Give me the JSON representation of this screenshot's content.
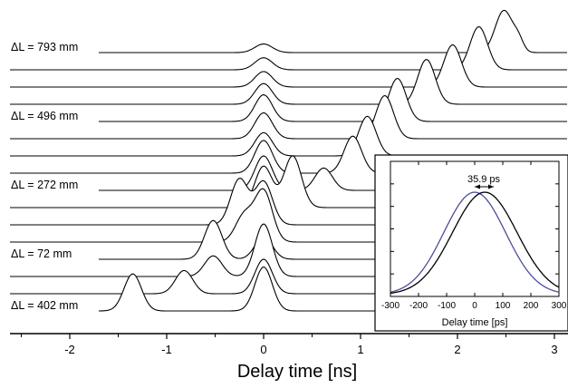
{
  "chart_data": [
    {
      "type": "line",
      "xlabel": "Delay time [ns]",
      "xlim": [
        -2.6,
        3.1
      ],
      "xticks": [
        -2,
        -1,
        0,
        1,
        2,
        3
      ],
      "xtick_labels": [
        "-2",
        "-1",
        "0",
        "1",
        "2",
        "3"
      ],
      "row_labels": [
        {
          "row": 0,
          "text": "ΔL = 793 mm"
        },
        {
          "row": 4,
          "text": "ΔL = 496 mm"
        },
        {
          "row": 8,
          "text": "ΔL = 272 mm"
        },
        {
          "row": 12,
          "text": "ΔL = 72 mm"
        },
        {
          "row": 15,
          "text": "ΔL = 402 mm"
        }
      ],
      "traces": [
        {
          "peaks": [
            {
              "x": 0.0,
              "a": 0.5,
              "w": 0.09
            },
            {
              "x": 2.48,
              "a": 2.45,
              "w": 0.09
            },
            {
              "x": 2.63,
              "a": 0.6,
              "w": 0.05
            }
          ]
        },
        {
          "peaks": [
            {
              "x": 0.0,
              "a": 0.7,
              "w": 0.09
            },
            {
              "x": 2.22,
              "a": 2.5,
              "w": 0.09
            }
          ]
        },
        {
          "peaks": [
            {
              "x": 0.0,
              "a": 0.9,
              "w": 0.09
            },
            {
              "x": 1.95,
              "a": 2.45,
              "w": 0.09
            }
          ]
        },
        {
          "peaks": [
            {
              "x": 0.0,
              "a": 1.2,
              "w": 0.09
            },
            {
              "x": 1.68,
              "a": 2.6,
              "w": 0.09
            }
          ]
        },
        {
          "peaks": [
            {
              "x": 0.0,
              "a": 1.55,
              "w": 0.09
            },
            {
              "x": 1.38,
              "a": 2.5,
              "w": 0.09
            }
          ]
        },
        {
          "peaks": [
            {
              "x": 0.0,
              "a": 1.5,
              "w": 0.09
            },
            {
              "x": 1.25,
              "a": 2.5,
              "w": 0.09
            }
          ]
        },
        {
          "peaks": [
            {
              "x": 0.0,
              "a": 1.35,
              "w": 0.09
            },
            {
              "x": 1.07,
              "a": 2.3,
              "w": 0.09
            }
          ]
        },
        {
          "peaks": [
            {
              "x": 0.0,
              "a": 1.9,
              "w": 0.09
            },
            {
              "x": 0.92,
              "a": 2.15,
              "w": 0.09
            }
          ]
        },
        {
          "peaks": [
            {
              "x": 0.0,
              "a": 2.0,
              "w": 0.09
            },
            {
              "x": 0.62,
              "a": 1.3,
              "w": 0.09
            }
          ]
        },
        {
          "peaks": [
            {
              "x": 0.0,
              "a": 2.4,
              "w": 0.09
            },
            {
              "x": 0.3,
              "a": 3.0,
              "w": 0.09
            }
          ]
        },
        {
          "peaks": [
            {
              "x": 0.0,
              "a": 2.5,
              "w": 0.09
            },
            {
              "x": -0.25,
              "a": 2.65,
              "w": 0.09
            }
          ]
        },
        {
          "peaks": [
            {
              "x": 0.0,
              "a": 2.95,
              "w": 0.09
            },
            {
              "x": -0.2,
              "a": 1.55,
              "w": 0.09
            }
          ]
        },
        {
          "peaks": [
            {
              "x": 0.0,
              "a": 1.3,
              "w": 0.09
            },
            {
              "x": -0.52,
              "a": 2.25,
              "w": 0.09
            }
          ]
        },
        {
          "peaks": [
            {
              "x": 0.0,
              "a": 3.05,
              "w": 0.09
            },
            {
              "x": -0.52,
              "a": 1.2,
              "w": 0.09
            }
          ]
        },
        {
          "peaks": [
            {
              "x": 0.0,
              "a": 2.0,
              "w": 0.09
            },
            {
              "x": -0.82,
              "a": 1.35,
              "w": 0.09
            }
          ]
        },
        {
          "peaks": [
            {
              "x": 0.0,
              "a": 2.55,
              "w": 0.09
            },
            {
              "x": -1.35,
              "a": 2.15,
              "w": 0.09
            }
          ]
        }
      ]
    },
    {
      "type": "line",
      "xlabel": "Delay time [ps]",
      "xlim": [
        -300,
        300
      ],
      "xticks": [
        -300,
        -200,
        -100,
        0,
        100,
        200,
        300
      ],
      "xtick_labels": [
        "-300",
        "-200",
        "-100",
        "0",
        "100",
        "200",
        "300"
      ],
      "annotation": "35.9 ps",
      "series": [
        {
          "center": 0,
          "sigma": 110,
          "color": "#4d4d9a"
        },
        {
          "center": 35.9,
          "sigma": 115,
          "color": "#000000"
        }
      ]
    }
  ]
}
